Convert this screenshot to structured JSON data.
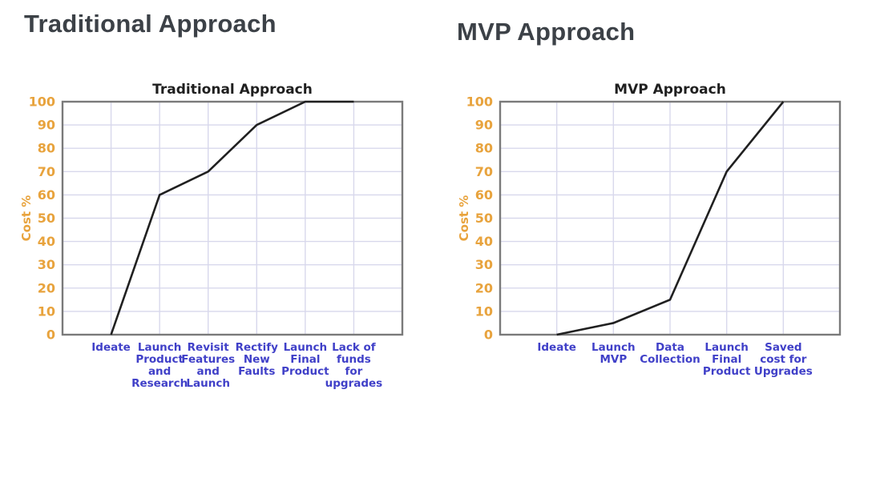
{
  "headings": {
    "left": "Traditional Approach",
    "right": "MVP Approach"
  },
  "colors": {
    "background": "#ffffff",
    "heading_text": "#3c4147",
    "chart_title": "#1f1f1f",
    "axis_tick_orange": "#e8a33d",
    "category_label_blue": "#4040c8",
    "gridline": "#d8d8ec",
    "plot_border": "#7a7a7a",
    "data_line": "#202020"
  },
  "chart_data": [
    {
      "type": "line",
      "title": "Traditional Approach",
      "xlabel": "",
      "ylabel": "Cost %",
      "ylim": [
        0,
        100
      ],
      "ytick_step": 10,
      "grid": true,
      "legend_position": "none",
      "categories": [
        "Ideate",
        "Launch Product and Research",
        "Revisit Features and Launch",
        "Rectify New Faults",
        "Launch Final Product",
        "Lack of funds for upgrades"
      ],
      "category_label_lines": [
        [
          "Ideate"
        ],
        [
          "Launch",
          "Product",
          "and",
          "Research"
        ],
        [
          "Revisit",
          "Features",
          "and",
          "Launch"
        ],
        [
          "Rectify",
          "New",
          "Faults"
        ],
        [
          "Launch",
          "Final",
          "Product"
        ],
        [
          "Lack of",
          "funds",
          "for",
          "upgrades"
        ]
      ],
      "values": [
        0,
        60,
        70,
        90,
        100,
        100
      ]
    },
    {
      "type": "line",
      "title": "MVP Approach",
      "xlabel": "",
      "ylabel": "Cost %",
      "ylim": [
        0,
        100
      ],
      "ytick_step": 10,
      "grid": true,
      "legend_position": "none",
      "categories": [
        "Ideate",
        "Launch MVP",
        "Data Collection",
        "Launch Final Product",
        "Saved cost for Upgrades"
      ],
      "category_label_lines": [
        [
          "Ideate"
        ],
        [
          "Launch",
          "MVP"
        ],
        [
          "Data",
          "Collection"
        ],
        [
          "Launch",
          "Final",
          "Product"
        ],
        [
          "Saved",
          "cost for",
          "Upgrades"
        ]
      ],
      "values": [
        0,
        5,
        15,
        70,
        100
      ]
    }
  ]
}
